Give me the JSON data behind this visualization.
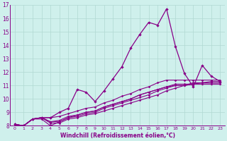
{
  "xlabel": "Windchill (Refroidissement éolien,°C)",
  "xlim": [
    -0.5,
    23.5
  ],
  "ylim": [
    8,
    17
  ],
  "xticks": [
    0,
    1,
    2,
    3,
    4,
    5,
    6,
    7,
    8,
    9,
    10,
    11,
    12,
    13,
    14,
    15,
    16,
    17,
    18,
    19,
    20,
    21,
    22,
    23
  ],
  "yticks": [
    8,
    9,
    10,
    11,
    12,
    13,
    14,
    15,
    16,
    17
  ],
  "bg_color": "#cff0ec",
  "grid_color": "#b0d8d2",
  "line_color": "#880088",
  "lines": {
    "main": [
      8.1,
      8.0,
      8.5,
      8.6,
      8.6,
      9.0,
      9.3,
      10.7,
      10.5,
      9.8,
      10.6,
      11.5,
      12.4,
      13.8,
      14.8,
      15.7,
      15.5,
      16.7,
      13.9,
      11.9,
      10.9,
      12.5,
      11.7,
      11.3
    ],
    "bg1": [
      8.1,
      8.0,
      8.5,
      8.6,
      8.2,
      8.2,
      8.5,
      8.6,
      8.8,
      8.9,
      9.1,
      9.3,
      9.5,
      9.7,
      9.9,
      10.1,
      10.3,
      10.6,
      10.8,
      11.0,
      11.2,
      11.2,
      11.3,
      11.3
    ],
    "bg2": [
      8.1,
      8.0,
      8.5,
      8.6,
      8.3,
      8.3,
      8.6,
      8.7,
      8.9,
      9.0,
      9.3,
      9.5,
      9.7,
      9.9,
      10.1,
      10.3,
      10.6,
      10.8,
      11.0,
      11.0,
      11.1,
      11.2,
      11.2,
      11.2
    ],
    "bg3": [
      8.1,
      8.0,
      8.5,
      8.6,
      8.3,
      8.4,
      8.7,
      8.8,
      9.0,
      9.1,
      9.4,
      9.6,
      9.8,
      10.0,
      10.3,
      10.5,
      10.7,
      10.9,
      11.1,
      11.1,
      11.1,
      11.1,
      11.1,
      11.1
    ],
    "bg4": [
      8.1,
      8.0,
      8.5,
      8.5,
      8.0,
      8.3,
      8.6,
      8.8,
      9.0,
      9.1,
      9.4,
      9.6,
      9.8,
      10.0,
      10.3,
      10.5,
      10.7,
      10.9,
      11.0,
      11.0,
      11.1,
      11.1,
      11.1,
      11.1
    ],
    "bg5": [
      8.1,
      8.0,
      8.5,
      8.6,
      8.6,
      8.7,
      8.9,
      9.1,
      9.3,
      9.4,
      9.7,
      9.9,
      10.2,
      10.4,
      10.7,
      10.9,
      11.2,
      11.4,
      11.4,
      11.4,
      11.4,
      11.4,
      11.4,
      11.4
    ]
  }
}
